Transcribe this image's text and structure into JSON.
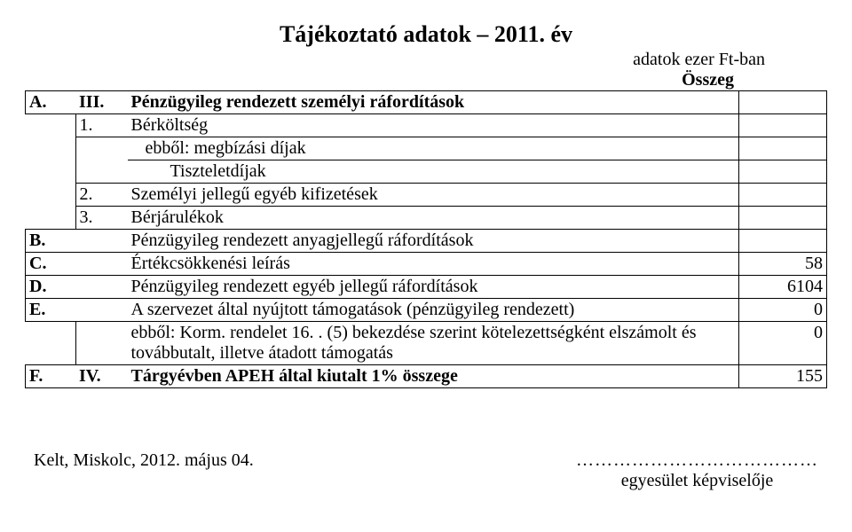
{
  "title": "Tájékoztató adatok – 2011. év",
  "top_unit": "adatok ezer Ft-ban",
  "sum_label": "Összeg",
  "rows": {
    "A": {
      "letter": "A.",
      "roman": "III.",
      "desc": "Pénzügyileg rendezett személyi ráfordítások"
    },
    "A1": {
      "num": "1.",
      "desc": "Bérköltség"
    },
    "A1a": {
      "desc": "ebből: megbízási díjak"
    },
    "A1b": {
      "desc": "Tiszteletdíjak"
    },
    "A2": {
      "num": "2.",
      "desc": "Személyi jellegű egyéb kifizetések"
    },
    "A3": {
      "num": "3.",
      "desc": "Bérjárulékok"
    },
    "B": {
      "letter": "B.",
      "desc": "Pénzügyileg rendezett anyagjellegű ráfordítások"
    },
    "C": {
      "letter": "C.",
      "desc": "Értékcsökkenési leírás",
      "val": "58"
    },
    "D": {
      "letter": "D.",
      "desc": "Pénzügyileg rendezett egyéb jellegű ráfordítások",
      "val": "6104"
    },
    "E": {
      "letter": "E.",
      "desc": "A szervezet által nyújtott támogatások (pénzügyileg rendezett)",
      "val": "0"
    },
    "E1": {
      "desc": "ebből: Korm. rendelet 16. . (5) bekezdése szerint kötelezettségként elszámolt és továbbutalt, illetve átadott támogatás",
      "val": "0"
    },
    "F": {
      "letter": "F.",
      "roman": "IV.",
      "desc": "Tárgyévben APEH által kiutalt 1% összege",
      "val": "155"
    }
  },
  "footer": {
    "date": "Kelt, Miskolc, 2012. május 04.",
    "dots": "…………………………………",
    "sig": "egyesület képviselője"
  },
  "colors": {
    "text": "#000000",
    "background": "#ffffff",
    "border": "#000000"
  },
  "typography": {
    "family": "Times New Roman",
    "title_size_pt": 20,
    "body_size_pt": 15
  }
}
